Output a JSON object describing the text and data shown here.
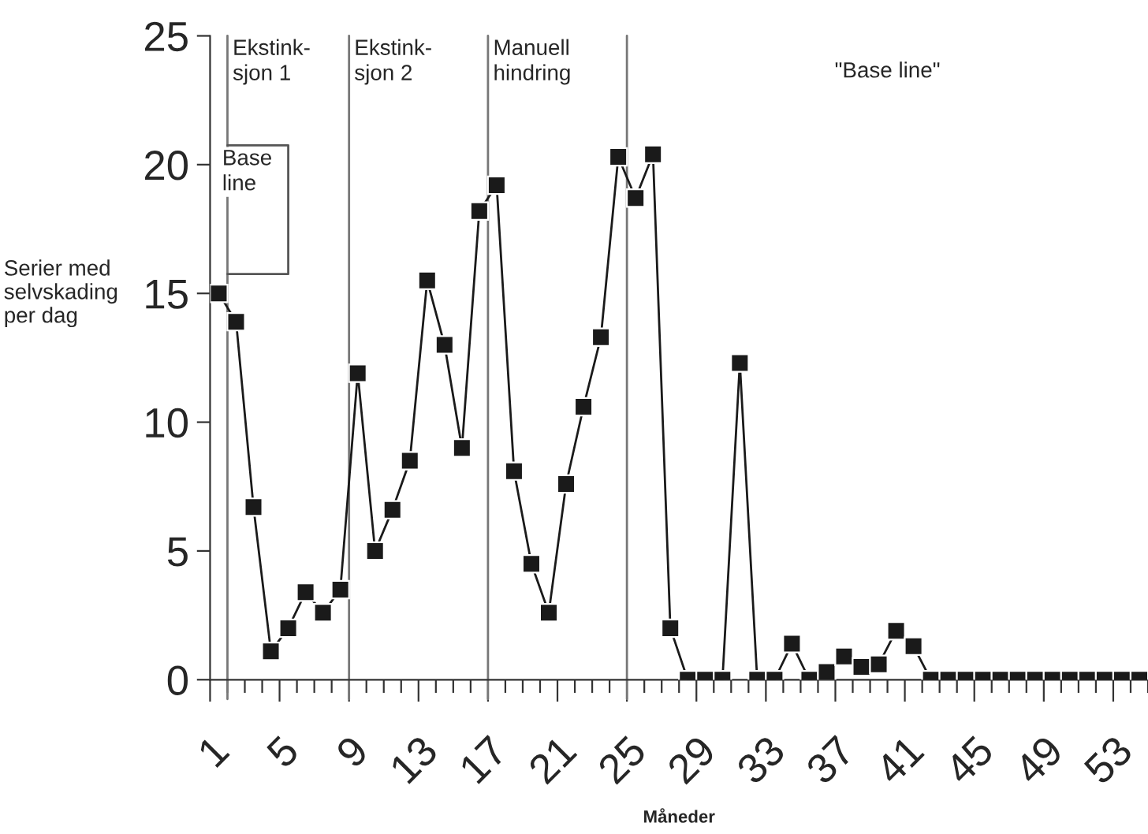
{
  "chart_data": {
    "type": "line",
    "ylabel": "Serier med\nselvskading\nper dag",
    "xlabel": "Måneder",
    "x": [
      1.5,
      2.5,
      3.5,
      4.5,
      5.5,
      6.5,
      7.5,
      8.5,
      9.5,
      10.5,
      11.5,
      12.5,
      13.5,
      14.5,
      15.5,
      16.5,
      17.5,
      18.5,
      19.5,
      20.5,
      21.5,
      22.5,
      23.5,
      24.5,
      25.5,
      26.5,
      27.5,
      28.5,
      29.5,
      30.5,
      31.5,
      32.5,
      33.5,
      34.5,
      35.5,
      36.5,
      37.5,
      38.5,
      39.5,
      40.5,
      41.5,
      42.5,
      43.5,
      44.5,
      45.5,
      46.5,
      47.5,
      48.5,
      49.5,
      50.5,
      51.5,
      52.5,
      53.5,
      54.5
    ],
    "series": [
      {
        "color": "#1a1a1a",
        "values": [
          15.0,
          13.9,
          6.7,
          1.1,
          2.0,
          3.4,
          2.6,
          3.5,
          11.9,
          5.0,
          6.6,
          8.5,
          15.5,
          13.0,
          9.0,
          18.2,
          19.2,
          8.1,
          4.5,
          2.6,
          7.6,
          10.6,
          13.3,
          20.3,
          18.7,
          20.4,
          2.0,
          0,
          0,
          0,
          12.3,
          0,
          0,
          1.4,
          0,
          0.3,
          0.9,
          0.5,
          0.6,
          1.9,
          1.3,
          0,
          0,
          0,
          0,
          0,
          0,
          0,
          0,
          0,
          0,
          0,
          0,
          0
        ]
      }
    ],
    "marker": "square",
    "line_style": "solid",
    "xlim": [
      1,
      55
    ],
    "ylim": [
      0,
      25
    ],
    "xticks": [
      1,
      {
        "value": 2,
        "label": null
      },
      {
        "value": 3,
        "label": null
      },
      {
        "value": 4,
        "label": null
      },
      5,
      {
        "value": 6,
        "label": null
      },
      {
        "value": 7,
        "label": null
      },
      {
        "value": 8,
        "label": null
      },
      9,
      {
        "value": 10,
        "label": null
      },
      {
        "value": 11,
        "label": null
      },
      {
        "value": 12,
        "label": null
      },
      13,
      {
        "value": 14,
        "label": null
      },
      {
        "value": 15,
        "label": null
      },
      {
        "value": 16,
        "label": null
      },
      17,
      {
        "value": 18,
        "label": null
      },
      {
        "value": 19,
        "label": null
      },
      {
        "value": 20,
        "label": null
      },
      21,
      {
        "value": 22,
        "label": null
      },
      {
        "value": 23,
        "label": null
      },
      {
        "value": 24,
        "label": null
      },
      25,
      {
        "value": 26,
        "label": null
      },
      {
        "value": 27,
        "label": null
      },
      {
        "value": 28,
        "label": null
      },
      29,
      {
        "value": 30,
        "label": null
      },
      {
        "value": 31,
        "label": null
      },
      {
        "value": 32,
        "label": null
      },
      33,
      {
        "value": 34,
        "label": null
      },
      {
        "value": 35,
        "label": null
      },
      {
        "value": 36,
        "label": null
      },
      37,
      {
        "value": 38,
        "label": null
      },
      {
        "value": 39,
        "label": null
      },
      {
        "value": 40,
        "label": null
      },
      41,
      {
        "value": 42,
        "label": null
      },
      {
        "value": 43,
        "label": null
      },
      {
        "value": 44,
        "label": null
      },
      45,
      {
        "value": 46,
        "label": null
      },
      {
        "value": 47,
        "label": null
      },
      {
        "value": 48,
        "label": null
      },
      49,
      {
        "value": 50,
        "label": null
      },
      {
        "value": 51,
        "label": null
      },
      {
        "value": 52,
        "label": null
      },
      53,
      {
        "value": 54,
        "label": null
      },
      {
        "value": 55,
        "label": null
      }
    ],
    "yticks": [
      0,
      5,
      10,
      15,
      20,
      25
    ],
    "ref_lines": [
      {
        "axis": "x",
        "value": 2,
        "label": "Ekstink-\nsjon 1",
        "color": "#777777"
      },
      {
        "axis": "x",
        "value": 9,
        "label": "Ekstink-\nsjon 2",
        "color": "#777777"
      },
      {
        "axis": "x",
        "value": 17,
        "label": "Manuell\nhindring",
        "color": "#777777"
      },
      {
        "axis": "x",
        "value": 25,
        "color": "#777777"
      }
    ],
    "annotations": [
      {
        "text": "Base\nline",
        "x": 1.7,
        "y": 20.6
      },
      "\"Base line\""
    ],
    "grid": false,
    "legend": false
  }
}
